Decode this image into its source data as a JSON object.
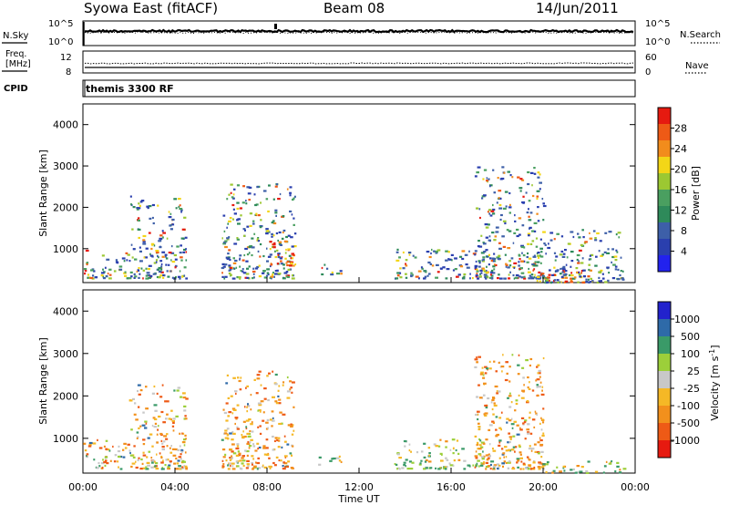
{
  "header": {
    "station": "Syowa East (fitACF)",
    "beam": "Beam 08",
    "date": "14/Jun/2011"
  },
  "noise_panel": {
    "left_label": "N.Sky",
    "left_ticks": [
      "10^5",
      "10^0"
    ],
    "right_label": "N.Search",
    "right_ticks": [
      "10^5",
      "10^0"
    ],
    "left_scale_max": "10^5",
    "left_scale_min": "10^0",
    "right_scale_max": "10^5",
    "right_scale_min": "10^0"
  },
  "freq_panel": {
    "left_label_line1": "Freq.",
    "left_label_line2": "[MHz]",
    "left_ticks": [
      "12",
      "8"
    ],
    "right_label": "Nave",
    "right_ticks": [
      "60",
      "0"
    ]
  },
  "cpid_panel": {
    "label": "CPID",
    "text": "themis 3300 RF"
  },
  "colors": {
    "power": [
      "#2222ee",
      "#2a3fae",
      "#3d5fa8",
      "#2e8a5a",
      "#4a9f60",
      "#9cc832",
      "#f3d617",
      "#f28c1c",
      "#ee5a16",
      "#e61a10"
    ],
    "velocity": [
      "#e61a10",
      "#ee5a16",
      "#f2901c",
      "#f5b826",
      "#c8c8c8",
      "#9ccf3a",
      "#3a9a68",
      "#2e6aa8",
      "#2222cc"
    ]
  },
  "time_axis": {
    "ticks": [
      "00:00",
      "04:00",
      "08:00",
      "12:00",
      "16:00",
      "20:00",
      "00:00"
    ],
    "label": "Time UT"
  },
  "chart_data": [
    {
      "type": "heatmap",
      "ylabel": "Slant Range [km]",
      "yticks": [
        "1000",
        "2000",
        "3000",
        "4000"
      ],
      "ylim": [
        180,
        4500
      ],
      "xlim": [
        0,
        24
      ],
      "colorbar": {
        "label": "Power [dB]",
        "ticks": [
          "4",
          "8",
          "12",
          "16",
          "20",
          "24",
          "28"
        ],
        "range": [
          0,
          30
        ]
      },
      "scatter_regions": [
        {
          "t": [
            0.0,
            2.0
          ],
          "r": [
            300,
            1000
          ],
          "value": "mixed"
        },
        {
          "t": [
            2.0,
            4.5
          ],
          "r": [
            300,
            2300
          ],
          "value": "mixed"
        },
        {
          "t": [
            6.0,
            9.2
          ],
          "r": [
            300,
            2600
          ],
          "value": "mixed"
        },
        {
          "t": [
            8.0,
            9.2
          ],
          "r": [
            600,
            1200
          ],
          "value": "high"
        },
        {
          "t": [
            10.2,
            11.2
          ],
          "r": [
            400,
            650
          ],
          "value": "mixed"
        },
        {
          "t": [
            13.5,
            17.5
          ],
          "r": [
            300,
            1000
          ],
          "value": "mixed"
        },
        {
          "t": [
            17.0,
            20.0
          ],
          "r": [
            300,
            3000
          ],
          "value": "mixed"
        },
        {
          "t": [
            19.5,
            22.5
          ],
          "r": [
            200,
            500
          ],
          "value": "high"
        },
        {
          "t": [
            20.0,
            23.5
          ],
          "r": [
            200,
            1500
          ],
          "value": "mixed"
        }
      ]
    },
    {
      "type": "heatmap",
      "ylabel": "Slant Range [km]",
      "yticks": [
        "1000",
        "2000",
        "3000",
        "4000"
      ],
      "ylim": [
        180,
        4500
      ],
      "xlim": [
        0,
        24
      ],
      "colorbar": {
        "label": "Velocity [m s^-1]",
        "ticks": [
          "1000",
          "500",
          "100",
          "25",
          "-25",
          "-100",
          "-500",
          "-1000"
        ],
        "range": [
          -1200,
          1200
        ]
      },
      "scatter_regions": [
        {
          "t": [
            0.0,
            2.0
          ],
          "r": [
            300,
            1000
          ],
          "value": "mixed"
        },
        {
          "t": [
            2.0,
            4.5
          ],
          "r": [
            300,
            2300
          ],
          "value": "mixed"
        },
        {
          "t": [
            6.0,
            9.2
          ],
          "r": [
            300,
            2600
          ],
          "value": "negative"
        },
        {
          "t": [
            10.2,
            11.2
          ],
          "r": [
            400,
            650
          ],
          "value": "positive"
        },
        {
          "t": [
            13.5,
            17.5
          ],
          "r": [
            300,
            1000
          ],
          "value": "positive"
        },
        {
          "t": [
            17.0,
            20.0
          ],
          "r": [
            300,
            3000
          ],
          "value": "negative"
        },
        {
          "t": [
            20.0,
            23.5
          ],
          "r": [
            200,
            500
          ],
          "value": "positive"
        }
      ]
    }
  ]
}
